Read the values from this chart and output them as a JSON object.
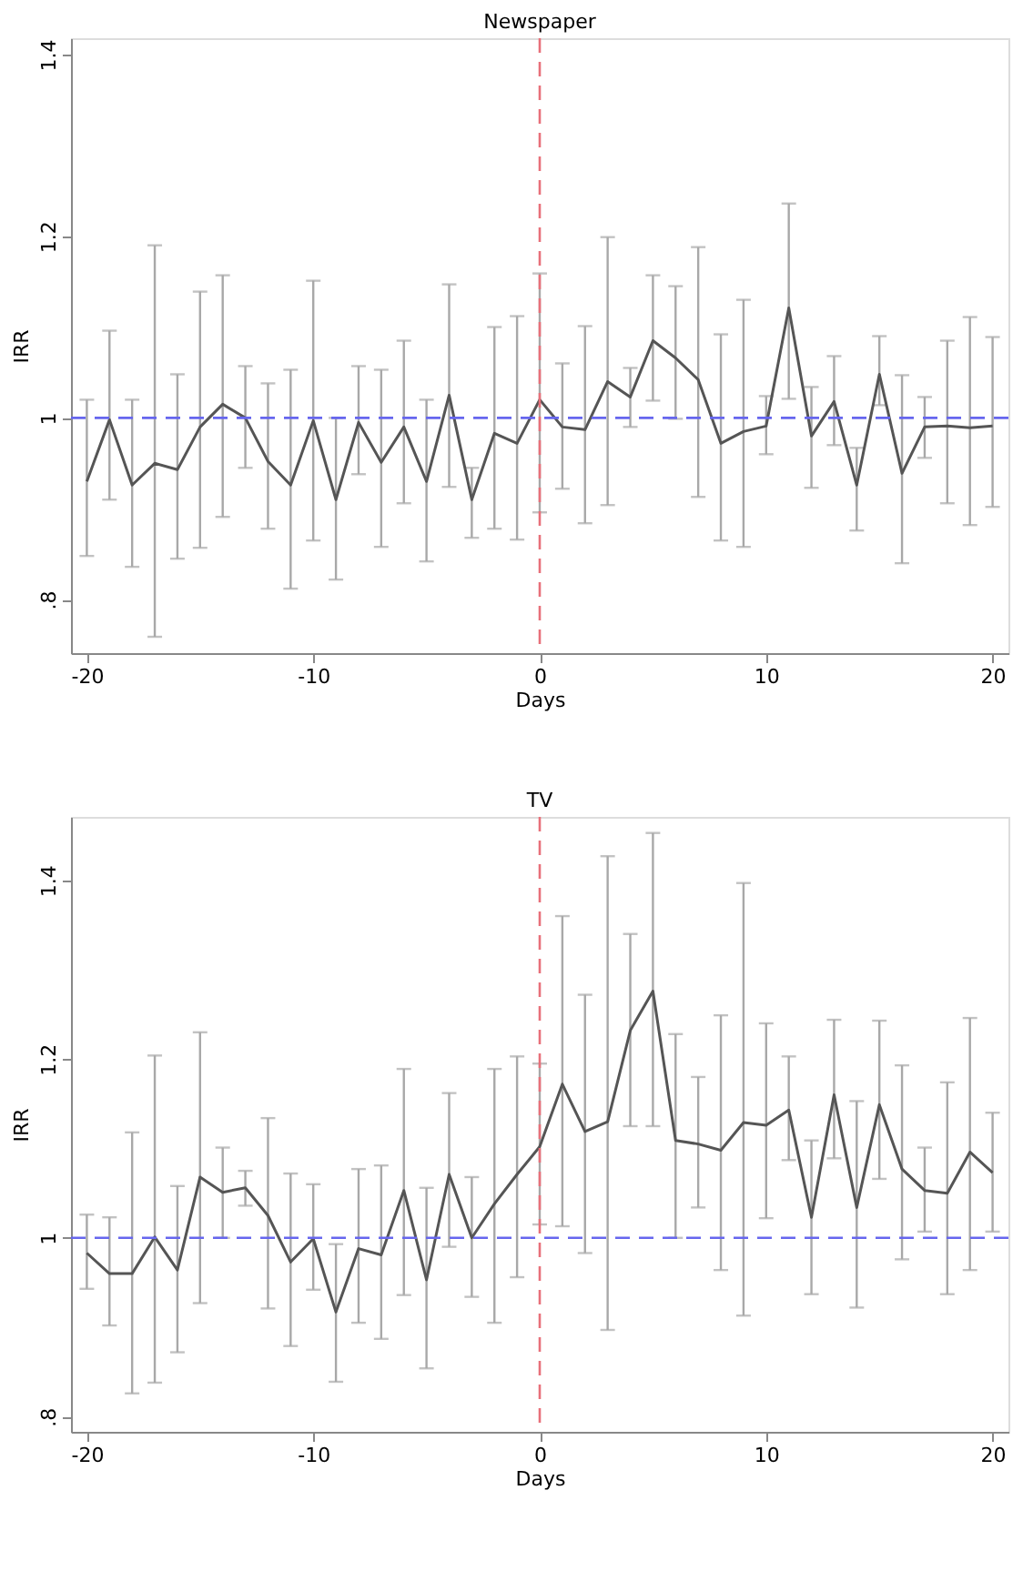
{
  "chart_data": [
    {
      "type": "line",
      "title": "Newspaper",
      "xlabel": "Days",
      "ylabel": "IRR",
      "x": [
        -20,
        -19,
        -18,
        -17,
        -16,
        -15,
        -14,
        -13,
        -12,
        -11,
        -10,
        -9,
        -8,
        -7,
        -6,
        -5,
        -4,
        -3,
        -2,
        -1,
        0,
        1,
        2,
        3,
        4,
        5,
        6,
        7,
        8,
        9,
        10,
        11,
        12,
        13,
        14,
        15,
        16,
        17,
        18,
        19,
        20
      ],
      "series": [
        {
          "color": "#555555",
          "line_style": "solid",
          "marker": "none",
          "values": [
            0.93,
            0.998,
            0.926,
            0.95,
            0.943,
            0.99,
            1.015,
            1.0,
            0.952,
            0.926,
            0.997,
            0.91,
            0.995,
            0.951,
            0.99,
            0.93,
            1.025,
            0.91,
            0.983,
            0.972,
            1.02,
            0.99,
            0.987,
            1.04,
            1.023,
            1.085,
            1.066,
            1.042,
            0.972,
            0.985,
            0.991,
            1.121,
            0.98,
            1.018,
            0.926,
            1.048,
            0.939,
            0.99,
            0.991,
            0.989,
            0.991
          ],
          "errors": [
            [
              0.848,
              1.02
            ],
            [
              0.91,
              1.096
            ],
            [
              0.836,
              1.02
            ],
            [
              0.759,
              1.19
            ],
            [
              0.845,
              1.048
            ],
            [
              0.857,
              1.139
            ],
            [
              0.891,
              1.157
            ],
            [
              0.945,
              1.057
            ],
            [
              0.878,
              1.038
            ],
            [
              0.812,
              1.053
            ],
            [
              0.865,
              1.151
            ],
            [
              0.822,
              1.0
            ],
            [
              0.938,
              1.057
            ],
            [
              0.858,
              1.053
            ],
            [
              0.906,
              1.085
            ],
            [
              0.842,
              1.02
            ],
            [
              0.924,
              1.147
            ],
            [
              0.868,
              0.945
            ],
            [
              0.878,
              1.1
            ],
            [
              0.866,
              1.112
            ],
            [
              0.896,
              1.159
            ],
            [
              0.922,
              1.06
            ],
            [
              0.884,
              1.101
            ],
            [
              0.904,
              1.199
            ],
            [
              0.99,
              1.055
            ],
            [
              1.019,
              1.157
            ],
            [
              0.999,
              1.145
            ],
            [
              0.913,
              1.188
            ],
            [
              0.865,
              1.092
            ],
            [
              0.858,
              1.13
            ],
            [
              0.96,
              1.024
            ],
            [
              1.021,
              1.236
            ],
            [
              0.923,
              1.034
            ],
            [
              0.97,
              1.068
            ],
            [
              0.876,
              0.967
            ],
            [
              1.014,
              1.09
            ],
            [
              0.84,
              1.047
            ],
            [
              0.956,
              1.023
            ],
            [
              0.906,
              1.085
            ],
            [
              0.882,
              1.111
            ],
            [
              0.902,
              1.089
            ]
          ]
        }
      ],
      "xlim": [
        -20.7,
        20.7
      ],
      "xticks": [
        -20,
        -10,
        0,
        10,
        20
      ],
      "ylim": [
        0.741,
        1.418
      ],
      "yticks": [
        {
          "value": 0.8,
          "label": ".8"
        },
        1,
        1.2,
        1.4
      ],
      "ref_lines": [
        {
          "axis": "y",
          "value": 1,
          "color": "#6666ee",
          "line_style": "dashed"
        },
        {
          "axis": "x",
          "value": 0,
          "color": "#e8707a",
          "line_style": "dashed"
        }
      ],
      "grid": false
    },
    {
      "type": "line",
      "title": "TV",
      "xlabel": "Days",
      "ylabel": "IRR",
      "x": [
        -20,
        -19,
        -18,
        -17,
        -16,
        -15,
        -14,
        -13,
        -12,
        -11,
        -10,
        -9,
        -8,
        -7,
        -6,
        -5,
        -4,
        -3,
        -2,
        -1,
        0,
        1,
        2,
        3,
        4,
        5,
        6,
        7,
        8,
        9,
        10,
        11,
        12,
        13,
        14,
        15,
        16,
        17,
        18,
        19,
        20
      ],
      "series": [
        {
          "color": "#555555",
          "line_style": "solid",
          "marker": "none",
          "values": [
            0.983,
            0.96,
            0.96,
            1.001,
            0.964,
            1.068,
            1.051,
            1.056,
            1.025,
            0.973,
            0.999,
            0.917,
            0.988,
            0.981,
            1.053,
            0.953,
            1.071,
            1.0,
            1.038,
            1.071,
            1.102,
            1.172,
            1.119,
            1.13,
            1.232,
            1.276,
            1.109,
            1.105,
            1.098,
            1.129,
            1.126,
            1.143,
            1.023,
            1.16,
            1.034,
            1.149,
            1.077,
            1.053,
            1.05,
            1.096,
            1.073
          ],
          "errors": [
            [
              0.943,
              1.026
            ],
            [
              0.902,
              1.023
            ],
            [
              0.826,
              1.118
            ],
            [
              0.838,
              1.204
            ],
            [
              0.872,
              1.058
            ],
            [
              0.927,
              1.23
            ],
            [
              1.0,
              1.101
            ],
            [
              1.036,
              1.075
            ],
            [
              0.921,
              1.134
            ],
            [
              0.879,
              1.072
            ],
            [
              0.942,
              1.06
            ],
            [
              0.839,
              0.993
            ],
            [
              0.905,
              1.077
            ],
            [
              0.887,
              1.081
            ],
            [
              0.936,
              1.189
            ],
            [
              0.854,
              1.056
            ],
            [
              0.99,
              1.162
            ],
            [
              0.934,
              1.068
            ],
            [
              0.905,
              1.189
            ],
            [
              0.956,
              1.203
            ],
            [
              1.015,
              1.195
            ],
            [
              1.013,
              1.36
            ],
            [
              0.983,
              1.272
            ],
            [
              0.897,
              1.427
            ],
            [
              1.125,
              1.34
            ],
            [
              1.125,
              1.453
            ],
            [
              1.0,
              1.228
            ],
            [
              1.034,
              1.18
            ],
            [
              0.964,
              1.249
            ],
            [
              0.913,
              1.397
            ],
            [
              1.022,
              1.24
            ],
            [
              1.087,
              1.203
            ],
            [
              0.937,
              1.109
            ],
            [
              1.089,
              1.244
            ],
            [
              0.922,
              1.153
            ],
            [
              1.066,
              1.243
            ],
            [
              0.976,
              1.193
            ],
            [
              1.007,
              1.101
            ],
            [
              0.937,
              1.174
            ],
            [
              0.964,
              1.246
            ],
            [
              1.007,
              1.14
            ]
          ]
        }
      ],
      "xlim": [
        -20.7,
        20.7
      ],
      "xticks": [
        -20,
        -10,
        0,
        10,
        20
      ],
      "ylim": [
        0.783,
        1.471
      ],
      "yticks": [
        {
          "value": 0.8,
          "label": ".8"
        },
        1,
        1.2,
        1.4
      ],
      "ref_lines": [
        {
          "axis": "y",
          "value": 1,
          "color": "#6666ee",
          "line_style": "dashed"
        },
        {
          "axis": "x",
          "value": 0,
          "color": "#e8707a",
          "line_style": "dashed"
        }
      ],
      "grid": false
    }
  ]
}
